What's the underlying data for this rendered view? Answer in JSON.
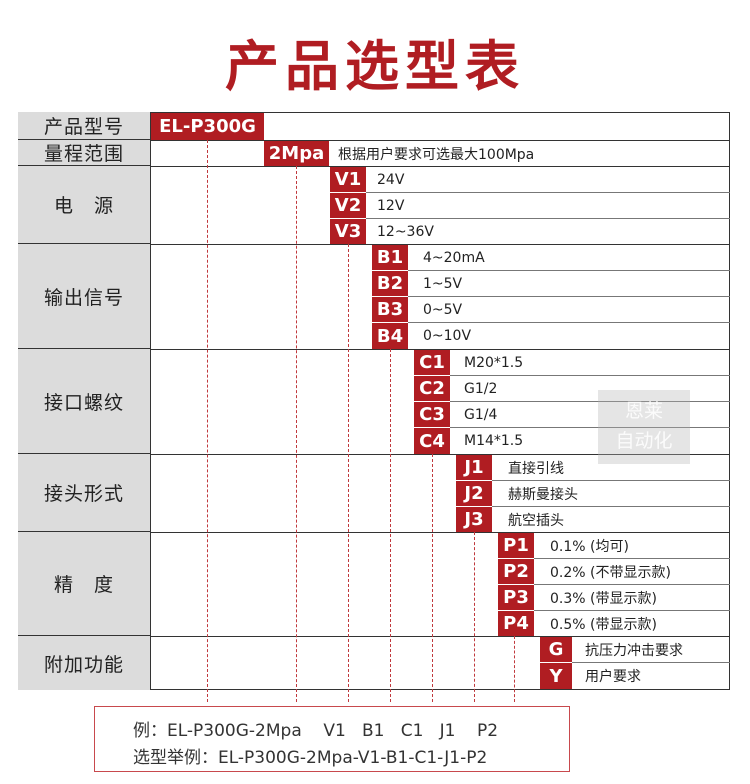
{
  "title": "产品选型表",
  "rows": {
    "model": {
      "label": "产品型号",
      "code": "EL-P300G"
    },
    "range": {
      "label": "量程范围",
      "code": "2Mpa",
      "desc": "根据用户要求可选最大100Mpa"
    },
    "power": {
      "label": "电　源",
      "items": [
        {
          "code": "V1",
          "desc": "24V"
        },
        {
          "code": "V2",
          "desc": "12V"
        },
        {
          "code": "V3",
          "desc": "12~36V"
        }
      ]
    },
    "output": {
      "label": "输出信号",
      "items": [
        {
          "code": "B1",
          "desc": "4~20mA"
        },
        {
          "code": "B2",
          "desc": "1~5V"
        },
        {
          "code": "B3",
          "desc": "0~5V"
        },
        {
          "code": "B4",
          "desc": "0~10V"
        }
      ]
    },
    "thread": {
      "label": "接口螺纹",
      "items": [
        {
          "code": "C1",
          "desc": "M20*1.5"
        },
        {
          "code": "C2",
          "desc": "G1/2"
        },
        {
          "code": "C3",
          "desc": "G1/4"
        },
        {
          "code": "C4",
          "desc": "M14*1.5"
        }
      ]
    },
    "connector": {
      "label": "接头形式",
      "items": [
        {
          "code": "J1",
          "desc": "直接引线"
        },
        {
          "code": "J2",
          "desc": "赫斯曼接头"
        },
        {
          "code": "J3",
          "desc": "航空插头"
        }
      ]
    },
    "accuracy": {
      "label": "精　度",
      "items": [
        {
          "code": "P1",
          "desc": "0.1% (均可)"
        },
        {
          "code": "P2",
          "desc": "0.2% (不带显示款)"
        },
        {
          "code": "P3",
          "desc": "0.3% (带显示款)"
        },
        {
          "code": "P4",
          "desc": "0.5% (带显示款)"
        }
      ]
    },
    "extra": {
      "label": "附加功能",
      "items": [
        {
          "code": "G",
          "desc": "抗压力冲击要求"
        },
        {
          "code": "Y",
          "desc": "用户要求"
        }
      ]
    }
  },
  "watermark": {
    "line1": "恩莱",
    "line2": "自动化"
  },
  "example": {
    "line1": "例：EL-P300G-2Mpa    V1   B1   C1   J1    P2",
    "line2": "选型举例：EL-P300G-2Mpa-V1-B1-C1-J1-P2"
  },
  "colors": {
    "accent": "#b01d22",
    "label_bg": "#dcdcdc"
  }
}
